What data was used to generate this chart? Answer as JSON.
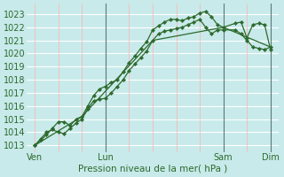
{
  "bg_color": "#c8eaea",
  "grid_color_h": "#ffffff",
  "grid_color_v": "#ffb0b0",
  "line_color": "#2d6a2d",
  "marker_color": "#2d6a2d",
  "xlabel": "Pression niveau de la mer( hPa )",
  "ylim": [
    1012.5,
    1023.8
  ],
  "yticks": [
    1013,
    1014,
    1015,
    1016,
    1017,
    1018,
    1019,
    1020,
    1021,
    1022,
    1023
  ],
  "xtick_labels": [
    "Ven",
    "Lun",
    "Sam",
    "Dim"
  ],
  "vline_positions": [
    48,
    120,
    192
  ],
  "vline_color": "#5a7a7a",
  "series0": {
    "x": [
      0,
      6,
      12,
      18,
      24,
      30,
      36,
      42,
      48,
      54,
      60,
      66,
      72,
      78,
      84,
      90,
      96,
      102,
      108,
      114,
      120,
      126,
      132,
      138,
      144,
      150,
      156,
      162,
      168,
      174,
      180,
      186,
      192,
      204,
      210,
      216,
      222,
      228,
      234,
      240
    ],
    "y": [
      1013.0,
      1013.4,
      1013.8,
      1014.3,
      1014.8,
      1014.8,
      1014.5,
      1015.0,
      1015.2,
      1016.0,
      1016.8,
      1017.3,
      1017.5,
      1017.8,
      1018.0,
      1018.6,
      1019.3,
      1019.8,
      1020.4,
      1020.9,
      1021.8,
      1022.1,
      1022.4,
      1022.6,
      1022.6,
      1022.5,
      1022.7,
      1022.8,
      1023.1,
      1023.2,
      1022.8,
      1022.2,
      1022.0,
      1022.3,
      1022.4,
      1021.2,
      1022.2,
      1022.3,
      1022.2,
      1020.3
    ]
  },
  "series1": {
    "x": [
      0,
      6,
      12,
      18,
      24,
      30,
      36,
      42,
      48,
      54,
      60,
      66,
      72,
      78,
      84,
      90,
      96,
      102,
      108,
      114,
      120,
      126,
      132,
      138,
      144,
      150,
      156,
      162,
      168,
      174,
      180,
      186,
      192,
      204,
      210,
      216,
      222,
      228,
      234,
      240
    ],
    "y": [
      1013.0,
      1013.5,
      1014.0,
      1014.2,
      1014.0,
      1013.9,
      1014.3,
      1014.7,
      1015.0,
      1015.8,
      1016.4,
      1016.5,
      1016.6,
      1017.0,
      1017.5,
      1018.0,
      1018.7,
      1019.2,
      1019.7,
      1020.2,
      1021.0,
      1021.5,
      1021.7,
      1021.8,
      1021.9,
      1022.0,
      1022.2,
      1022.4,
      1022.6,
      1022.0,
      1021.5,
      1021.8,
      1021.8,
      1021.8,
      1021.5,
      1021.0,
      1020.5,
      1020.4,
      1020.3,
      1020.5
    ]
  },
  "series2": {
    "x": [
      0,
      48,
      120,
      192,
      240
    ],
    "y": [
      1013.0,
      1015.2,
      1021.0,
      1022.0,
      1020.5
    ]
  },
  "figsize": [
    3.2,
    2.0
  ],
  "dpi": 100
}
